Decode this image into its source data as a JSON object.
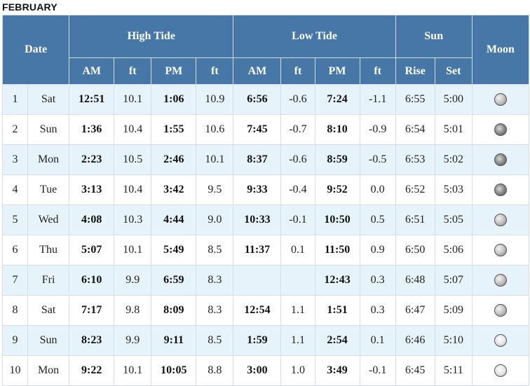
{
  "month": "FEBRUARY",
  "headers": {
    "date": "Date",
    "high_tide": "High Tide",
    "low_tide": "Low Tide",
    "sun": "Sun",
    "moon": "Moon",
    "am": "AM",
    "ft": "ft",
    "pm": "PM",
    "rise": "Rise",
    "set": "Set"
  },
  "rows": [
    {
      "day": "1",
      "dow": "Sat",
      "high_am": "12:51",
      "high_am_ft": "10.1",
      "high_pm": "1:06",
      "high_pm_ft": "10.9",
      "low_am": "6:56",
      "low_am_ft": "-0.6",
      "low_pm": "7:24",
      "low_pm_ft": "-1.1",
      "sun_rise": "6:55",
      "sun_set": "5:00",
      "moon_icon": "waning-crescent-moon-icon"
    },
    {
      "day": "2",
      "dow": "Sun",
      "high_am": "1:36",
      "high_am_ft": "10.4",
      "high_pm": "1:55",
      "high_pm_ft": "10.6",
      "low_am": "7:45",
      "low_am_ft": "-0.7",
      "low_pm": "8:10",
      "low_pm_ft": "-0.9",
      "sun_rise": "6:54",
      "sun_set": "5:01",
      "moon_icon": "new-moon-icon"
    },
    {
      "day": "3",
      "dow": "Mon",
      "high_am": "2:23",
      "high_am_ft": "10.5",
      "high_pm": "2:46",
      "high_pm_ft": "10.1",
      "low_am": "8:37",
      "low_am_ft": "-0.6",
      "low_pm": "8:59",
      "low_pm_ft": "-0.5",
      "sun_rise": "6:53",
      "sun_set": "5:02",
      "moon_icon": "new-moon-icon"
    },
    {
      "day": "4",
      "dow": "Tue",
      "high_am": "3:13",
      "high_am_ft": "10.4",
      "high_pm": "3:42",
      "high_pm_ft": "9.5",
      "low_am": "9:33",
      "low_am_ft": "-0.4",
      "low_pm": "9:52",
      "low_pm_ft": "0.0",
      "sun_rise": "6:52",
      "sun_set": "5:03",
      "moon_icon": "new-moon-icon"
    },
    {
      "day": "5",
      "dow": "Wed",
      "high_am": "4:08",
      "high_am_ft": "10.3",
      "high_pm": "4:44",
      "high_pm_ft": "9.0",
      "low_am": "10:33",
      "low_am_ft": "-0.1",
      "low_pm": "10:50",
      "low_pm_ft": "0.5",
      "sun_rise": "6:51",
      "sun_set": "5:05",
      "moon_icon": "waxing-crescent-moon-icon"
    },
    {
      "day": "6",
      "dow": "Thu",
      "high_am": "5:07",
      "high_am_ft": "10.1",
      "high_pm": "5:49",
      "high_pm_ft": "8.5",
      "low_am": "11:37",
      "low_am_ft": "0.1",
      "low_pm": "11:50",
      "low_pm_ft": "0.9",
      "sun_rise": "6:50",
      "sun_set": "5:06",
      "moon_icon": "waxing-crescent-moon-icon"
    },
    {
      "day": "7",
      "dow": "Fri",
      "high_am": "6:10",
      "high_am_ft": "9.9",
      "high_pm": "6:59",
      "high_pm_ft": "8.3",
      "low_am": "",
      "low_am_ft": "",
      "low_pm": "12:43",
      "low_pm_ft": "0.3",
      "sun_rise": "6:48",
      "sun_set": "5:07",
      "moon_icon": "waxing-crescent-moon-icon"
    },
    {
      "day": "8",
      "dow": "Sat",
      "high_am": "7:17",
      "high_am_ft": "9.8",
      "high_pm": "8:09",
      "high_pm_ft": "8.3",
      "low_am": "12:54",
      "low_am_ft": "1.1",
      "low_pm": "1:51",
      "low_pm_ft": "0.3",
      "sun_rise": "6:47",
      "sun_set": "5:09",
      "moon_icon": "first-quarter-moon-icon"
    },
    {
      "day": "9",
      "dow": "Sun",
      "high_am": "8:23",
      "high_am_ft": "9.9",
      "high_pm": "9:11",
      "high_pm_ft": "8.5",
      "low_am": "1:59",
      "low_am_ft": "1.1",
      "low_pm": "2:54",
      "low_pm_ft": "0.1",
      "sun_rise": "6:46",
      "sun_set": "5:10",
      "moon_icon": "waxing-gibbous-moon-icon"
    },
    {
      "day": "10",
      "dow": "Mon",
      "high_am": "9:22",
      "high_am_ft": "10.1",
      "high_pm": "10:05",
      "high_pm_ft": "8.8",
      "low_am": "3:00",
      "low_am_ft": "1.0",
      "low_pm": "3:49",
      "low_pm_ft": "-0.1",
      "sun_rise": "6:45",
      "sun_set": "5:11",
      "moon_icon": "waxing-gibbous-moon-icon"
    }
  ]
}
